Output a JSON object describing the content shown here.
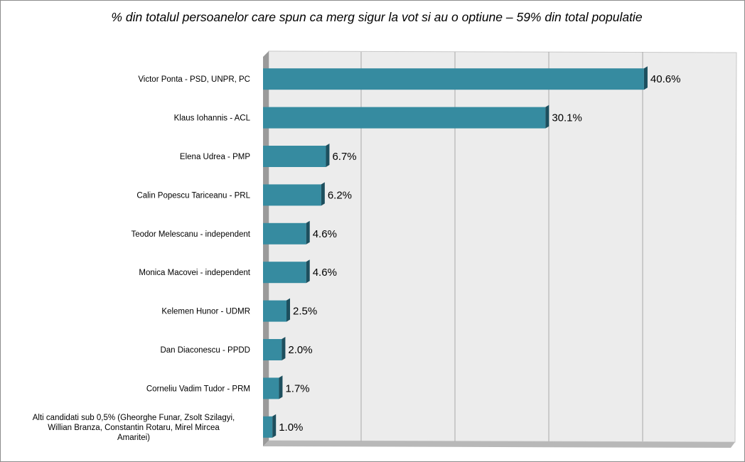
{
  "chart_data": {
    "type": "bar",
    "orientation": "horizontal",
    "title": "% din totalul persoanelor care spun ca merg sigur la vot si au o optiune  – 59% din total populatie",
    "categories": [
      "Victor Ponta - PSD, UNPR, PC",
      "Klaus Iohannis - ACL",
      "Elena Udrea - PMP",
      "Calin Popescu Tariceanu - PRL",
      "Teodor Melescanu - independent",
      "Monica Macovei - independent",
      "Kelemen Hunor - UDMR",
      "Dan Diaconescu - PPDD",
      "Corneliu Vadim Tudor - PRM",
      "Alti candidati sub 0,5% (Gheorghe Funar, Zsolt Szilagyi, Willian Branza, Constantin Rotaru, Mirel Mircea Amaritei)"
    ],
    "category_lines": [
      [
        "Victor Ponta - PSD, UNPR, PC"
      ],
      [
        "Klaus Iohannis - ACL"
      ],
      [
        "Elena Udrea - PMP"
      ],
      [
        "Calin Popescu Tariceanu - PRL"
      ],
      [
        "Teodor Melescanu - independent"
      ],
      [
        "Monica Macovei - independent"
      ],
      [
        "Kelemen Hunor - UDMR"
      ],
      [
        "Dan Diaconescu - PPDD"
      ],
      [
        "Corneliu Vadim Tudor - PRM"
      ],
      [
        "Alti candidati sub 0,5% (Gheorghe Funar, Zsolt Szilagyi,",
        "Willian Branza, Constantin Rotaru, Mirel Mircea",
        "Amaritei)"
      ]
    ],
    "values": [
      40.6,
      30.1,
      6.7,
      6.2,
      4.6,
      4.6,
      2.5,
      2.0,
      1.7,
      1.0
    ],
    "value_labels": [
      "40.6%",
      "30.1%",
      "6.7%",
      "6.2%",
      "4.6%",
      "4.6%",
      "2.5%",
      "2.0%",
      "1.7%",
      "1.0%"
    ],
    "xlim": [
      0,
      50
    ],
    "gridlines": [
      10,
      20,
      30,
      40
    ],
    "grid": true,
    "legend": "none",
    "bar_color": "#368ba0",
    "bar_side_color": "#1d4f5e"
  }
}
